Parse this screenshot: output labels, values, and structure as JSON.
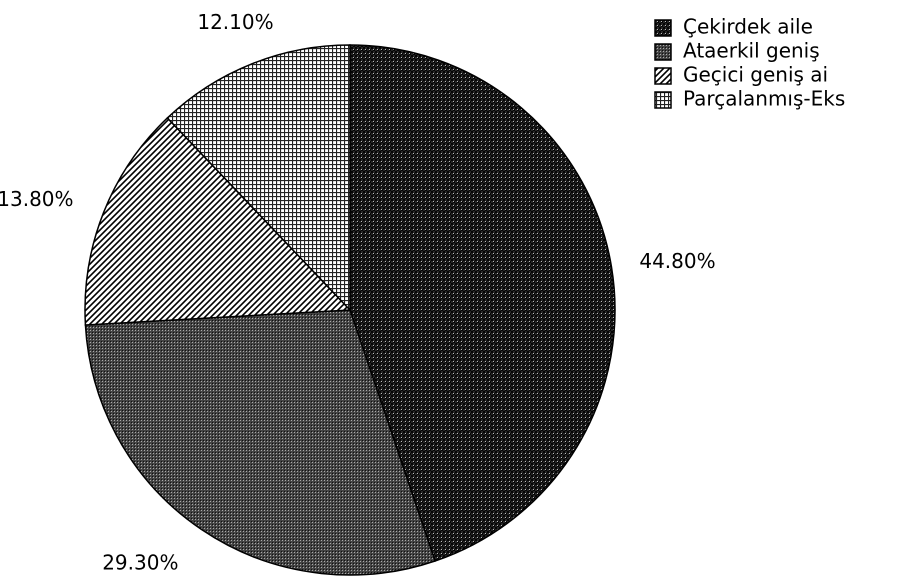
{
  "chart_data": {
    "type": "pie",
    "categories": [
      "Çekirdek aile",
      "Ataerkil geniş",
      "Geçici geniş ai",
      "Parçalanmış-Eks"
    ],
    "values": [
      44.8,
      29.3,
      13.8,
      12.1
    ],
    "value_labels": [
      "44.80%",
      "29.30%",
      "13.80%",
      "12.10%"
    ],
    "legend": "top-right"
  }
}
